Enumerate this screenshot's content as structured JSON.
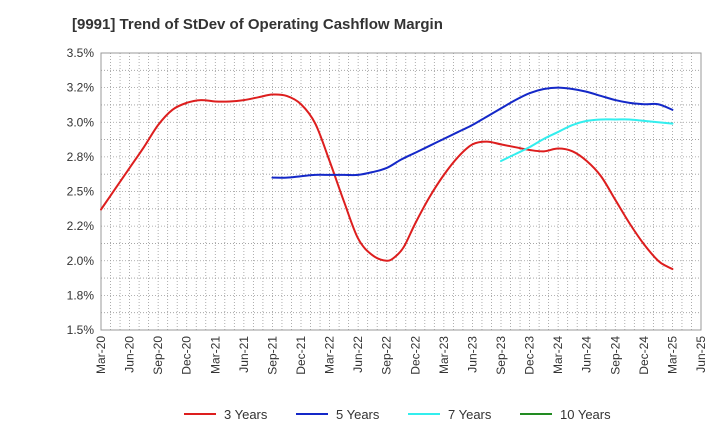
{
  "chart_data": {
    "type": "line",
    "title": "[9991]  Trend of StDev of Operating Cashflow Margin",
    "xlabel": "",
    "ylabel": "",
    "x_ticks": [
      "Mar-20",
      "Jun-20",
      "Sep-20",
      "Dec-20",
      "Mar-21",
      "Jun-21",
      "Sep-21",
      "Dec-21",
      "Mar-22",
      "Jun-22",
      "Sep-22",
      "Dec-22",
      "Mar-23",
      "Jun-23",
      "Sep-23",
      "Dec-23",
      "Mar-24",
      "Jun-24",
      "Sep-24",
      "Dec-24",
      "Mar-25",
      "Jun-25"
    ],
    "y_ticks": [
      "1.5%",
      "1.8%",
      "2.0%",
      "2.2%",
      "2.5%",
      "2.8%",
      "3.0%",
      "3.2%",
      "3.5%"
    ],
    "ylim": [
      1.5,
      3.5
    ],
    "grid": true,
    "legend_position": "bottom",
    "series": [
      {
        "name": "3 Years",
        "color": "#dd1e1e",
        "points": [
          [
            0.0,
            2.37
          ],
          [
            0.5,
            2.52
          ],
          [
            1.0,
            2.67
          ],
          [
            1.5,
            2.82
          ],
          [
            2.0,
            2.98
          ],
          [
            2.5,
            3.09
          ],
          [
            3.0,
            3.14
          ],
          [
            3.5,
            3.16
          ],
          [
            4.0,
            3.15
          ],
          [
            4.5,
            3.15
          ],
          [
            5.0,
            3.16
          ],
          [
            5.5,
            3.18
          ],
          [
            6.0,
            3.2
          ],
          [
            6.5,
            3.19
          ],
          [
            7.0,
            3.13
          ],
          [
            7.5,
            2.99
          ],
          [
            8.0,
            2.72
          ],
          [
            8.5,
            2.43
          ],
          [
            9.0,
            2.16
          ],
          [
            9.5,
            2.04
          ],
          [
            10.0,
            2.0
          ],
          [
            10.3,
            2.03
          ],
          [
            10.6,
            2.1
          ],
          [
            11.0,
            2.27
          ],
          [
            11.5,
            2.46
          ],
          [
            12.0,
            2.62
          ],
          [
            12.5,
            2.75
          ],
          [
            13.0,
            2.84
          ],
          [
            13.5,
            2.86
          ],
          [
            14.0,
            2.84
          ],
          [
            14.5,
            2.82
          ],
          [
            15.0,
            2.8
          ],
          [
            15.5,
            2.79
          ],
          [
            16.0,
            2.81
          ],
          [
            16.5,
            2.79
          ],
          [
            17.0,
            2.72
          ],
          [
            17.5,
            2.61
          ],
          [
            18.0,
            2.44
          ],
          [
            18.5,
            2.27
          ],
          [
            19.0,
            2.12
          ],
          [
            19.5,
            2.0
          ],
          [
            19.8,
            1.96
          ],
          [
            20.0,
            1.94
          ]
        ]
      },
      {
        "name": "5 Years",
        "color": "#1428c8",
        "points": [
          [
            6.0,
            2.6
          ],
          [
            6.5,
            2.6
          ],
          [
            7.0,
            2.61
          ],
          [
            7.5,
            2.62
          ],
          [
            8.0,
            2.62
          ],
          [
            8.5,
            2.62
          ],
          [
            9.0,
            2.62
          ],
          [
            9.5,
            2.64
          ],
          [
            10.0,
            2.67
          ],
          [
            10.5,
            2.73
          ],
          [
            11.0,
            2.78
          ],
          [
            11.5,
            2.83
          ],
          [
            12.0,
            2.88
          ],
          [
            12.5,
            2.93
          ],
          [
            13.0,
            2.98
          ],
          [
            13.5,
            3.04
          ],
          [
            14.0,
            3.1
          ],
          [
            14.5,
            3.16
          ],
          [
            15.0,
            3.21
          ],
          [
            15.5,
            3.24
          ],
          [
            16.0,
            3.25
          ],
          [
            16.5,
            3.24
          ],
          [
            17.0,
            3.22
          ],
          [
            17.5,
            3.19
          ],
          [
            18.0,
            3.16
          ],
          [
            18.5,
            3.14
          ],
          [
            19.0,
            3.13
          ],
          [
            19.5,
            3.13
          ],
          [
            20.0,
            3.09
          ]
        ]
      },
      {
        "name": "7 Years",
        "color": "#33eeee",
        "points": [
          [
            14.0,
            2.72
          ],
          [
            14.5,
            2.77
          ],
          [
            15.0,
            2.82
          ],
          [
            15.5,
            2.88
          ],
          [
            16.0,
            2.93
          ],
          [
            16.5,
            2.98
          ],
          [
            17.0,
            3.01
          ],
          [
            17.5,
            3.02
          ],
          [
            18.0,
            3.02
          ],
          [
            18.5,
            3.02
          ],
          [
            19.0,
            3.01
          ],
          [
            19.5,
            3.0
          ],
          [
            20.0,
            2.99
          ]
        ]
      },
      {
        "name": "10 Years",
        "color": "#228b22",
        "points": []
      }
    ]
  }
}
